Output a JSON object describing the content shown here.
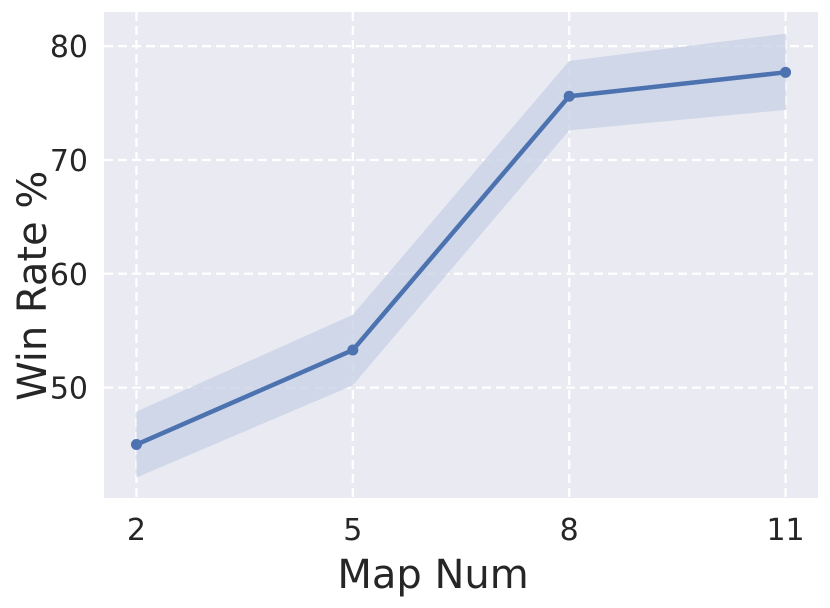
{
  "chart_data": {
    "type": "line",
    "xlabel": "Map Num",
    "ylabel": "Win Rate %",
    "x": [
      2,
      5,
      8,
      11
    ],
    "x_tick_labels": [
      "2",
      "5",
      "8",
      "11"
    ],
    "y_ticks": [
      50,
      60,
      70,
      80
    ],
    "y_tick_labels": [
      "50",
      "60",
      "70",
      "80"
    ],
    "xlim": [
      1.55,
      11.45
    ],
    "ylim": [
      40.3,
      83.0
    ],
    "grid": true,
    "grid_style": "dashed",
    "series": [
      {
        "values": [
          45.0,
          53.3,
          75.6,
          77.7
        ],
        "upper": [
          47.9,
          56.4,
          78.7,
          81.1
        ],
        "lower": [
          42.1,
          50.2,
          72.6,
          74.4
        ],
        "color": "#4c72b0",
        "band_color": "#c6d0e6"
      }
    ],
    "background_color": "#eaeaf2"
  }
}
